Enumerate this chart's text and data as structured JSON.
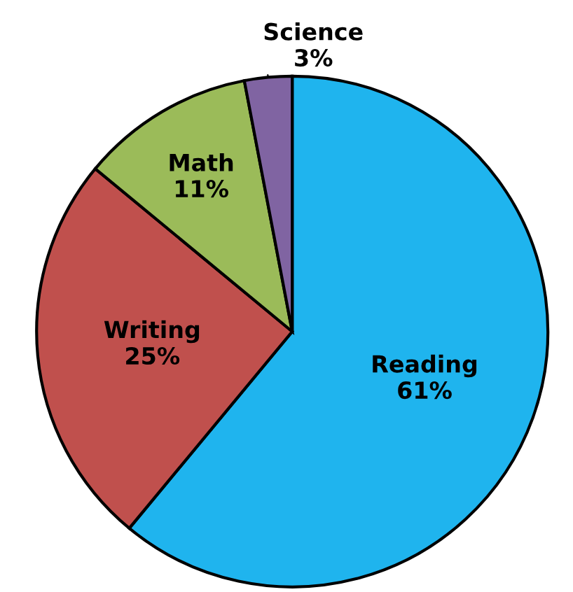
{
  "chart_data": {
    "type": "pie",
    "categories": [
      "Reading",
      "Writing",
      "Math",
      "Science"
    ],
    "values": [
      61,
      25,
      11,
      3
    ],
    "value_labels": [
      "61%",
      "25%",
      "11%",
      "3%"
    ],
    "colors": [
      "#1fb4ee",
      "#c0504d",
      "#9bbb59",
      "#8064a2"
    ],
    "legend": false
  }
}
